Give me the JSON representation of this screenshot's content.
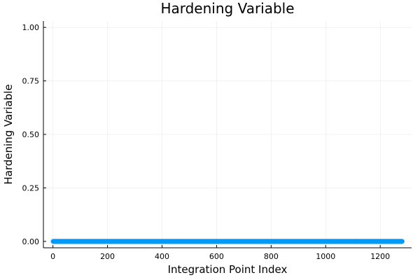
{
  "chart_data": {
    "type": "scatter",
    "title": "Hardening Variable",
    "xlabel": "Integration Point Index",
    "ylabel": "Hardening Variable",
    "xlim": [
      -35,
      1315
    ],
    "ylim": [
      -0.03,
      1.03
    ],
    "xticks": [
      0,
      200,
      400,
      600,
      800,
      1000,
      1200
    ],
    "xtick_labels": [
      "0",
      "200",
      "400",
      "600",
      "800",
      "1000",
      "1200"
    ],
    "yticks": [
      0,
      0.25,
      0.5,
      0.75,
      1.0
    ],
    "ytick_labels": [
      "0.00",
      "0.25",
      "0.50",
      "0.75",
      "1.00"
    ],
    "grid": true,
    "legend": false,
    "series_color": "#009af9",
    "series": [
      {
        "x_start": 1,
        "x_end": 1280,
        "x_step": 1,
        "y_value": 0.0
      }
    ]
  }
}
